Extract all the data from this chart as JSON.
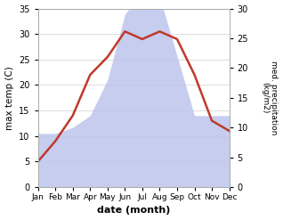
{
  "months": [
    "Jan",
    "Feb",
    "Mar",
    "Apr",
    "May",
    "Jun",
    "Jul",
    "Aug",
    "Sep",
    "Oct",
    "Nov",
    "Dec"
  ],
  "temperature": [
    5.0,
    9.0,
    14.0,
    22.0,
    25.5,
    30.5,
    29.0,
    30.5,
    29.0,
    22.0,
    13.0,
    11.0
  ],
  "precipitation": [
    9.0,
    9.0,
    10.0,
    12.0,
    18.0,
    29.0,
    33.0,
    32.0,
    22.0,
    12.0,
    12.0,
    12.0
  ],
  "temp_color": "#c0392b",
  "precip_fill_color": "#bcc5ed",
  "temp_ylim": [
    0,
    35
  ],
  "precip_ylim": [
    0,
    30
  ],
  "temp_yticks": [
    0,
    5,
    10,
    15,
    20,
    25,
    30,
    35
  ],
  "precip_yticks": [
    0,
    5,
    10,
    15,
    20,
    25,
    30
  ],
  "xlabel": "date (month)",
  "ylabel_left": "max temp (C)",
  "ylabel_right": "med. precipitation\n(kg/m2)",
  "background_color": "#ffffff",
  "grid_color": "#d0d0d0",
  "figsize": [
    3.18,
    2.47
  ],
  "dpi": 100
}
